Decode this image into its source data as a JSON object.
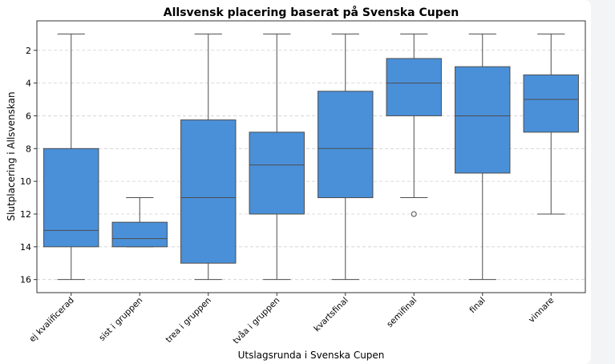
{
  "chart_data": {
    "type": "box",
    "title": "Allsvensk placering baserat på Svenska Cupen",
    "xlabel": "Utslagsrunda i Svenska Cupen",
    "ylabel": "Slutplacering i Allsvenskan",
    "y_axis_inverted": true,
    "ylim": [
      16.8,
      0.2
    ],
    "yticks": [
      2,
      4,
      6,
      8,
      10,
      12,
      14,
      16
    ],
    "grid": "horizontal dashed",
    "box_color": "#4a90d9",
    "categories": [
      "ej kvalificerad",
      "sist i gruppen",
      "trea i gruppen",
      "tvåa i gruppen",
      "kvartsfinal",
      "semifinal",
      "final",
      "vinnare"
    ],
    "boxes": [
      {
        "whisker_low": 1,
        "q1": 8,
        "median": 13,
        "q3": 14,
        "whisker_high": 16,
        "outliers": []
      },
      {
        "whisker_low": 11,
        "q1": 12.5,
        "median": 13.5,
        "q3": 14,
        "whisker_high": 14,
        "outliers": []
      },
      {
        "whisker_low": 1,
        "q1": 6.25,
        "median": 11,
        "q3": 15,
        "whisker_high": 16,
        "outliers": []
      },
      {
        "whisker_low": 1,
        "q1": 7,
        "median": 9,
        "q3": 12,
        "whisker_high": 16,
        "outliers": []
      },
      {
        "whisker_low": 1,
        "q1": 4.5,
        "median": 8,
        "q3": 11,
        "whisker_high": 16,
        "outliers": []
      },
      {
        "whisker_low": 1,
        "q1": 2.5,
        "median": 4,
        "q3": 6,
        "whisker_high": 11,
        "outliers": [
          12
        ]
      },
      {
        "whisker_low": 1,
        "q1": 3,
        "median": 6,
        "q3": 9.5,
        "whisker_high": 16,
        "outliers": []
      },
      {
        "whisker_low": 1,
        "q1": 3.5,
        "median": 5,
        "q3": 7,
        "whisker_high": 12,
        "outliers": []
      }
    ]
  }
}
